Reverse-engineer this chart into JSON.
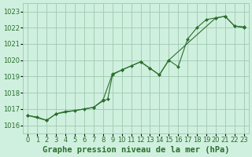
{
  "background_color": "#cff0df",
  "grid_color": "#a0c8b0",
  "line_color": "#2d6e2d",
  "marker_color": "#2d6e2d",
  "xlim": [
    -0.5,
    23.5
  ],
  "ylim": [
    1015.5,
    1023.5
  ],
  "yticks": [
    1016,
    1017,
    1018,
    1019,
    1020,
    1021,
    1022,
    1023
  ],
  "xticks": [
    0,
    1,
    2,
    3,
    4,
    5,
    6,
    7,
    8,
    9,
    10,
    11,
    12,
    13,
    14,
    15,
    16,
    17,
    18,
    19,
    20,
    21,
    22,
    23
  ],
  "series1_x": [
    0,
    1,
    2,
    3,
    4,
    5,
    6,
    7,
    8,
    9,
    10,
    11,
    12,
    13,
    14,
    15,
    16,
    17,
    18,
    19,
    20,
    21,
    22,
    23
  ],
  "series1_y": [
    1016.6,
    1016.5,
    1016.3,
    1016.7,
    1016.85,
    1016.9,
    1017.0,
    1017.1,
    1017.55,
    1019.15,
    1019.4,
    1019.65,
    1019.9,
    1019.5,
    1019.1,
    1020.0,
    1019.6,
    1021.3,
    1022.0,
    1022.5,
    1022.6,
    1022.7,
    1022.1,
    1022.05
  ],
  "series2_x": [
    0,
    2,
    3,
    7,
    8,
    8.5,
    9,
    10,
    12,
    13,
    14,
    15,
    20,
    21,
    22,
    23
  ],
  "series2_y": [
    1016.6,
    1016.3,
    1016.7,
    1017.1,
    1017.5,
    1017.6,
    1019.1,
    1019.4,
    1019.9,
    1019.5,
    1019.1,
    1020.0,
    1022.6,
    1022.7,
    1022.1,
    1022.0
  ],
  "xlabel": "Graphe pression niveau de la mer (hPa)",
  "xlabel_fontsize": 7.5,
  "tick_fontsize": 6.0
}
